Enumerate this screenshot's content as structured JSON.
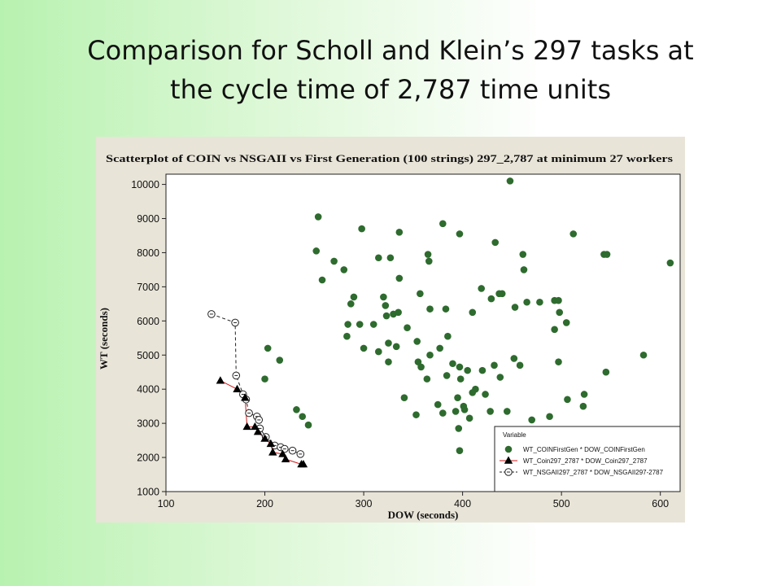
{
  "slide": {
    "title_line1": "Comparison for Scholl and Klein’s 297 tasks at",
    "title_line2": "the cycle time of 2,787 time units"
  },
  "chart_data": {
    "type": "scatter",
    "title": "Scatterplot of COIN vs NSGAII vs First Generation (100 strings) 297_2,787 at minimum 27 workers",
    "xlabel": "DOW  (seconds)",
    "ylabel": "WT  (seconds)",
    "xlim": [
      100,
      620
    ],
    "ylim": [
      1000,
      10300
    ],
    "xticks": [
      100,
      200,
      300,
      400,
      500,
      600
    ],
    "yticks": [
      1000,
      2000,
      3000,
      4000,
      5000,
      6000,
      7000,
      8000,
      9000,
      10000
    ],
    "grid": false,
    "legend_position": "bottom-right",
    "legend_title": "Variable",
    "colors": {
      "first_gen": "#2e6b2e",
      "coin": "#000000",
      "coin_line": "#d11a1a",
      "nsga": "#222222"
    },
    "series": [
      {
        "name": "WT_COINFirstGen * DOW_COINFirstGen",
        "marker": "filled-circle",
        "points": [
          [
            448,
            10100
          ],
          [
            254,
            9050
          ],
          [
            298,
            8700
          ],
          [
            380,
            8850
          ],
          [
            336,
            8600
          ],
          [
            397,
            8550
          ],
          [
            512,
            8550
          ],
          [
            252,
            8050
          ],
          [
            270,
            7750
          ],
          [
            280,
            7500
          ],
          [
            315,
            7850
          ],
          [
            327,
            7850
          ],
          [
            365,
            7950
          ],
          [
            433,
            8300
          ],
          [
            461,
            7950
          ],
          [
            462,
            7500
          ],
          [
            543,
            7950
          ],
          [
            546,
            7950
          ],
          [
            610,
            7700
          ],
          [
            258,
            7200
          ],
          [
            336,
            7250
          ],
          [
            366,
            7750
          ],
          [
            419,
            6950
          ],
          [
            440,
            6800
          ],
          [
            437,
            6800
          ],
          [
            429,
            6650
          ],
          [
            290,
            6700
          ],
          [
            287,
            6500
          ],
          [
            320,
            6700
          ],
          [
            284,
            5900
          ],
          [
            296,
            5900
          ],
          [
            310,
            5900
          ],
          [
            322,
            6450
          ],
          [
            323,
            6150
          ],
          [
            330,
            6200
          ],
          [
            335,
            6250
          ],
          [
            344,
            5800
          ],
          [
            357,
            6800
          ],
          [
            367,
            6350
          ],
          [
            383,
            6350
          ],
          [
            410,
            6250
          ],
          [
            453,
            6400
          ],
          [
            465,
            6550
          ],
          [
            493,
            6600
          ],
          [
            478,
            6550
          ],
          [
            497,
            6600
          ],
          [
            498,
            6250
          ],
          [
            505,
            5950
          ],
          [
            493,
            5750
          ],
          [
            283,
            5550
          ],
          [
            300,
            5200
          ],
          [
            315,
            5100
          ],
          [
            325,
            5350
          ],
          [
            333,
            5250
          ],
          [
            354,
            5400
          ],
          [
            367,
            5000
          ],
          [
            385,
            5550
          ],
          [
            377,
            5200
          ],
          [
            390,
            4750
          ],
          [
            397,
            4650
          ],
          [
            405,
            4550
          ],
          [
            413,
            4000
          ],
          [
            420,
            4550
          ],
          [
            432,
            4700
          ],
          [
            438,
            4350
          ],
          [
            452,
            4900
          ],
          [
            458,
            4700
          ],
          [
            497,
            4800
          ],
          [
            545,
            4500
          ],
          [
            583,
            5000
          ],
          [
            355,
            4800
          ],
          [
            358,
            4650
          ],
          [
            364,
            4300
          ],
          [
            384,
            4400
          ],
          [
            398,
            4300
          ],
          [
            353,
            3250
          ],
          [
            341,
            3750
          ],
          [
            375,
            3550
          ],
          [
            393,
            3350
          ],
          [
            401,
            3500
          ],
          [
            410,
            3900
          ],
          [
            423,
            3850
          ],
          [
            428,
            3350
          ],
          [
            445,
            3350
          ],
          [
            458,
            2750
          ],
          [
            470,
            3100
          ],
          [
            488,
            3200
          ],
          [
            506,
            3700
          ],
          [
            522,
            3500
          ],
          [
            523,
            3850
          ],
          [
            396,
            2850
          ],
          [
            397,
            2200
          ],
          [
            407,
            3150
          ],
          [
            380,
            3300
          ],
          [
            402,
            3400
          ],
          [
            395,
            3750
          ],
          [
            200,
            4300
          ],
          [
            203,
            5200
          ],
          [
            215,
            4850
          ],
          [
            232,
            3400
          ],
          [
            238,
            3200
          ],
          [
            244,
            2950
          ],
          [
            325,
            4800
          ]
        ]
      },
      {
        "name": "WT_Coin297_2787 * DOW_Coin297_2787",
        "marker": "filled-triangle",
        "points": [
          [
            155,
            4250
          ],
          [
            172,
            4000
          ],
          [
            180,
            3750
          ],
          [
            182,
            2900
          ],
          [
            190,
            2900
          ],
          [
            193,
            2750
          ],
          [
            200,
            2550
          ],
          [
            206,
            2400
          ],
          [
            208,
            2150
          ],
          [
            218,
            2100
          ],
          [
            221,
            1950
          ],
          [
            237,
            1800
          ],
          [
            239,
            1800
          ]
        ]
      },
      {
        "name": "WT_NSGAII297_2787 * DOW_NSGAII297-2787",
        "marker": "open-circle-dot",
        "points": [
          [
            146,
            6200
          ],
          [
            170,
            5950
          ],
          [
            171,
            4400
          ],
          [
            178,
            3850
          ],
          [
            181,
            3700
          ],
          [
            184,
            3300
          ],
          [
            192,
            3200
          ],
          [
            194,
            3100
          ],
          [
            195,
            2850
          ],
          [
            201,
            2600
          ],
          [
            210,
            2350
          ],
          [
            216,
            2300
          ],
          [
            220,
            2250
          ],
          [
            228,
            2200
          ],
          [
            236,
            2100
          ]
        ]
      }
    ]
  }
}
